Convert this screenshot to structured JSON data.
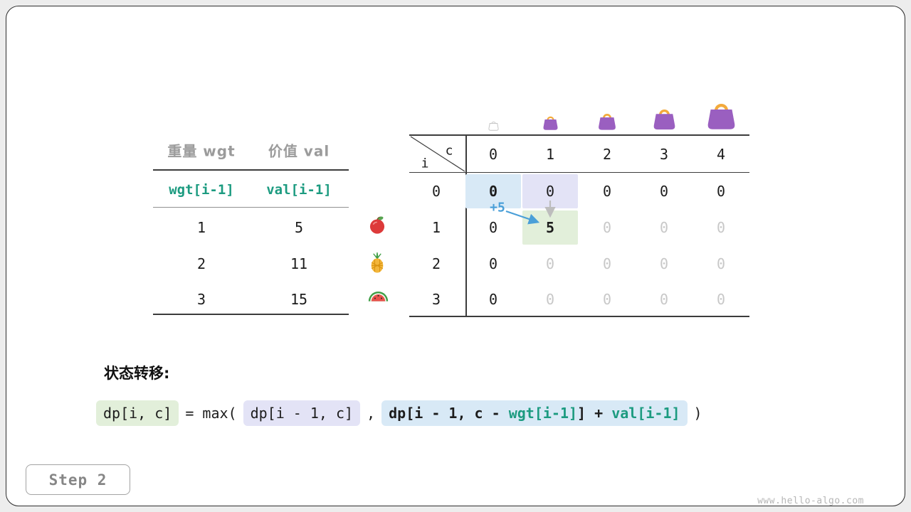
{
  "colors": {
    "teal": "#1c9b80",
    "highlight_blue": "#d8e9f6",
    "highlight_lavender": "#e3e3f6",
    "highlight_green": "#e2efda",
    "dim_text": "#c8c8c8",
    "arrow_blue": "#4a9fd8",
    "arrow_gray": "#bdbdbd",
    "bag_purple": "#9a5fc0",
    "bag_handle": "#f3aa3c"
  },
  "items_table": {
    "headers": [
      "重量 wgt",
      "价值 val"
    ],
    "formula_row": [
      "wgt[i-1]",
      "val[i-1]"
    ],
    "rows": [
      {
        "wgt": "1",
        "val": "5",
        "icon": "apple-icon"
      },
      {
        "wgt": "2",
        "val": "11",
        "icon": "pineapple-icon"
      },
      {
        "wgt": "3",
        "val": "15",
        "icon": "watermelon-icon"
      }
    ]
  },
  "dp_table": {
    "corner_col_label": "c",
    "corner_row_label": "i",
    "col_headers": [
      "0",
      "1",
      "2",
      "3",
      "4"
    ],
    "row_headers": [
      "0",
      "1",
      "2",
      "3"
    ],
    "annotation": "+5",
    "bags": [
      "bag-icon-xs",
      "bag-icon-s",
      "bag-icon-m",
      "bag-icon-l",
      "bag-icon-xl"
    ],
    "rows": [
      [
        {
          "v": "0",
          "hl": "blue",
          "bold": true
        },
        {
          "v": "0",
          "hl": "lavender"
        },
        {
          "v": "0"
        },
        {
          "v": "0"
        },
        {
          "v": "0"
        }
      ],
      [
        {
          "v": "0"
        },
        {
          "v": "5",
          "hl": "green",
          "bold": true
        },
        {
          "v": "0",
          "dim": true
        },
        {
          "v": "0",
          "dim": true
        },
        {
          "v": "0",
          "dim": true
        }
      ],
      [
        {
          "v": "0"
        },
        {
          "v": "0",
          "dim": true
        },
        {
          "v": "0",
          "dim": true
        },
        {
          "v": "0",
          "dim": true
        },
        {
          "v": "0",
          "dim": true
        }
      ],
      [
        {
          "v": "0"
        },
        {
          "v": "0",
          "dim": true
        },
        {
          "v": "0",
          "dim": true
        },
        {
          "v": "0",
          "dim": true
        },
        {
          "v": "0",
          "dim": true
        }
      ]
    ]
  },
  "transition": {
    "label": "状态转移:",
    "lhs": "dp[i, c]",
    "equals_max": "= max(",
    "term1": "dp[i - 1, c]",
    "comma": ",",
    "term2": [
      {
        "t": "dp[i - 1, c - ",
        "green": false
      },
      {
        "t": "wgt[i-1]",
        "green": true
      },
      {
        "t": "] + ",
        "green": false
      },
      {
        "t": "val[i-1]",
        "green": true
      }
    ],
    "close": ")"
  },
  "footer": {
    "step_label": "Step 2",
    "watermark": "www.hello-algo.com"
  }
}
